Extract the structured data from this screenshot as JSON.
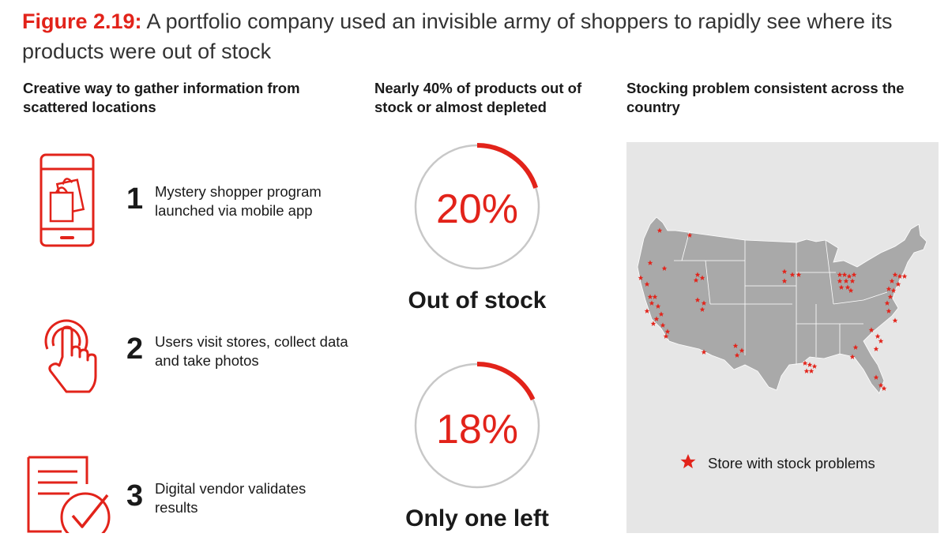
{
  "title": {
    "prefix": "Figure 2.19:",
    "text": " A portfolio company used an invisible army of shoppers to rapidly see where its products were out of stock"
  },
  "columns": {
    "left_heading": "Creative way to gather information from scattered locations",
    "middle_heading": "Nearly 40% of products out of stock or almost depleted",
    "right_heading": "Stocking problem consistent across the country"
  },
  "steps": [
    {
      "number": "1",
      "text": "Mystery shopper program launched via mobile app",
      "icon": "mobile-shopping-icon"
    },
    {
      "number": "2",
      "text": "Users visit stores, collect data and take photos",
      "icon": "tap-hand-icon"
    },
    {
      "number": "3",
      "text": "Digital vendor validates results",
      "icon": "checked-document-icon"
    }
  ],
  "metrics": [
    {
      "value": "20%",
      "label": "Out of stock",
      "fraction": 0.2
    },
    {
      "value": "18%",
      "label": "Only one left",
      "fraction": 0.18
    }
  ],
  "map": {
    "legend": "Store with stock problems",
    "marker_icon": "star-icon"
  },
  "colors": {
    "accent": "#e2231a",
    "ring_track": "#c8c8c8",
    "map_land": "#a9a9a9",
    "map_panel": "#e6e6e6"
  }
}
